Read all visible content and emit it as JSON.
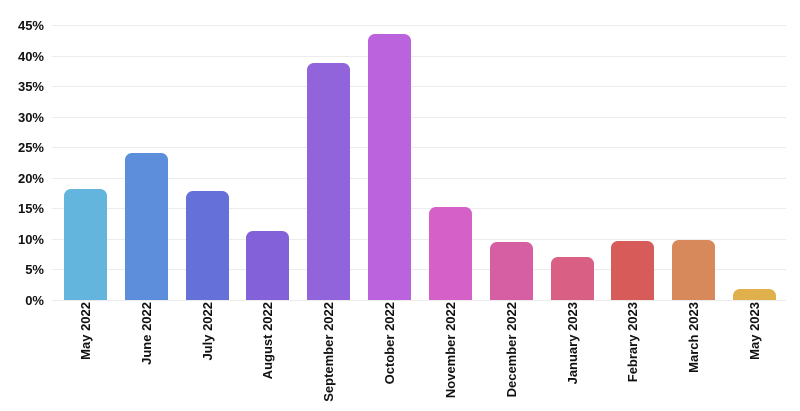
{
  "chart_data": {
    "type": "bar",
    "title": "",
    "xlabel": "",
    "ylabel": "",
    "categories": [
      "May 2022",
      "June 2022",
      "July 2022",
      "August 2022",
      "September 2022",
      "October 2022",
      "November 2022",
      "December 2022",
      "January 2023",
      "Febrary 2023",
      "March 2023",
      "May 2023"
    ],
    "values": [
      18.2,
      24.1,
      17.9,
      11.3,
      38.8,
      43.5,
      15.3,
      9.5,
      7.1,
      9.7,
      9.8,
      1.8
    ],
    "bar_colors": [
      "#63B5DD",
      "#5D8EDC",
      "#6570D8",
      "#8261D9",
      "#9164DC",
      "#BB62DD",
      "#D560C8",
      "#D65FA3",
      "#D95F85",
      "#D75B59",
      "#D8895B",
      "#DFB04C"
    ],
    "y_ticks": [
      "0%",
      "5%",
      "10%",
      "15%",
      "20%",
      "25%",
      "30%",
      "35%",
      "40%",
      "45%"
    ],
    "y_tick_values": [
      0,
      5,
      10,
      15,
      20,
      25,
      30,
      35,
      40,
      45
    ],
    "ylim": [
      0,
      45
    ],
    "grid": true,
    "legend": false,
    "colors": {
      "background": "#ffffff",
      "gridline": "#ececec",
      "label_text": "#111111"
    }
  }
}
